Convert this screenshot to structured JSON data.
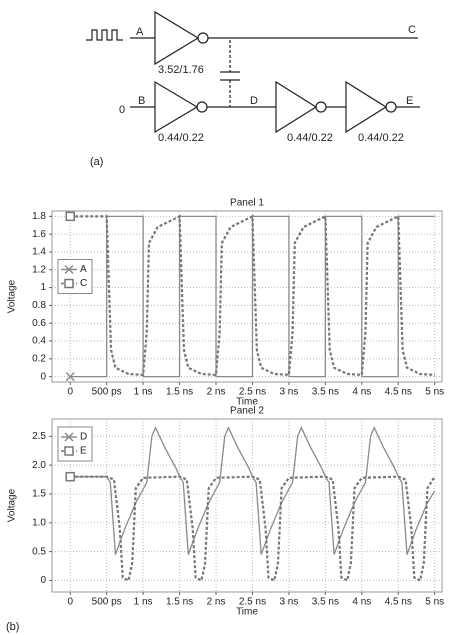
{
  "diagram": {
    "input_a": "A",
    "output_c": "C",
    "size_1": "3.52/1.76",
    "input_b_value": "0",
    "input_b": "B",
    "node_d": "D",
    "output_e": "E",
    "size_2": "0.44/0.22",
    "size_3": "0.44/0.22",
    "size_4": "0.44/0.22",
    "caption": "(a)"
  },
  "caption_b": "(b)",
  "chart_data": [
    {
      "type": "line",
      "title": "Panel 1",
      "xlabel": "Time",
      "ylabel": "Voltage",
      "xlim": [
        -0.25,
        5.1
      ],
      "ylim": [
        -0.06,
        1.86
      ],
      "xticks": [
        0,
        {
          "value": 0.5,
          "label": "500 ps"
        },
        {
          "value": 1,
          "label": "1 ns"
        },
        {
          "value": 1.5,
          "label": "1.5 ns"
        },
        {
          "value": 2,
          "label": "2 ns"
        },
        {
          "value": 2.5,
          "label": "2.5 ns"
        },
        {
          "value": 3,
          "label": "3 ns"
        },
        {
          "value": 3.5,
          "label": "3.5 ns"
        },
        {
          "value": 4,
          "label": "4 ns"
        },
        {
          "value": 4.5,
          "label": "4.5 ns"
        },
        {
          "value": 5,
          "label": "5 ns"
        }
      ],
      "yticks": [
        0,
        0.2,
        0.4,
        0.6,
        0.8,
        1,
        1.2,
        1.4,
        1.6,
        1.8
      ],
      "grid": true,
      "legend": "center left",
      "series": [
        {
          "name": "A",
          "color": "#8a8a8a",
          "marker": "x",
          "dashed": false,
          "x": [
            0,
            0.5,
            0.5,
            1,
            1,
            1.5,
            1.5,
            2,
            2,
            2.5,
            2.5,
            3,
            3,
            3.5,
            3.5,
            4,
            4,
            4.5,
            4.5,
            5
          ],
          "values": [
            0,
            0,
            1.8,
            1.8,
            0,
            0,
            1.8,
            1.8,
            0,
            0,
            1.8,
            1.8,
            0,
            0,
            1.8,
            1.8,
            0,
            0,
            1.8,
            1.8
          ]
        },
        {
          "name": "C",
          "color": "#777777",
          "marker": "square",
          "dashed": true,
          "x": [
            0,
            0.5,
            0.56,
            0.62,
            0.8,
            1.0,
            1.05,
            1.08,
            1.2,
            1.4,
            1.5,
            1.56,
            1.62,
            1.8,
            2.0,
            2.05,
            2.08,
            2.2,
            2.4,
            2.5,
            2.56,
            2.62,
            2.8,
            3.0,
            3.05,
            3.08,
            3.2,
            3.4,
            3.5,
            3.56,
            3.62,
            3.8,
            4.0,
            4.05,
            4.08,
            4.2,
            4.4,
            4.5,
            4.56,
            4.62,
            4.8,
            5.0
          ],
          "values": [
            1.8,
            1.8,
            0.3,
            0.1,
            0.03,
            0.02,
            0.5,
            1.5,
            1.68,
            1.76,
            1.8,
            0.3,
            0.1,
            0.03,
            0.02,
            0.5,
            1.5,
            1.68,
            1.76,
            1.8,
            0.3,
            0.1,
            0.03,
            0.02,
            0.5,
            1.5,
            1.68,
            1.76,
            1.8,
            0.3,
            0.1,
            0.03,
            0.02,
            0.5,
            1.5,
            1.68,
            1.76,
            1.8,
            0.3,
            0.1,
            0.03,
            0.02
          ]
        }
      ]
    },
    {
      "type": "line",
      "title": "Panel 2",
      "xlabel": "Time",
      "ylabel": "Voltage",
      "xlim": [
        -0.25,
        5.1
      ],
      "ylim": [
        -0.2,
        2.8
      ],
      "xticks": [
        0,
        {
          "value": 0.5,
          "label": "500 ps"
        },
        {
          "value": 1,
          "label": "1 ns"
        },
        {
          "value": 1.5,
          "label": "1.5 ns"
        },
        {
          "value": 2,
          "label": "2 ns"
        },
        {
          "value": 2.5,
          "label": "2.5 ns"
        },
        {
          "value": 3,
          "label": "3 ns"
        },
        {
          "value": 3.5,
          "label": "3.5 ns"
        },
        {
          "value": 4,
          "label": "4 ns"
        },
        {
          "value": 4.5,
          "label": "4.5 ns"
        },
        {
          "value": 5,
          "label": "5 ns"
        }
      ],
      "yticks": [
        0,
        0.5,
        {
          "value": 1,
          "label": "1.0"
        },
        1.5,
        {
          "value": 2,
          "label": "2.0"
        },
        2.5
      ],
      "grid": true,
      "legend": "upper left",
      "series": [
        {
          "name": "D",
          "color": "#8a8a8a",
          "marker": "x",
          "dashed": false,
          "x": [
            0,
            0.5,
            0.55,
            0.62,
            0.75,
            0.9,
            1.05,
            1.12,
            1.17,
            1.3,
            1.45,
            1.5,
            1.55,
            1.62,
            1.75,
            1.9,
            2.05,
            2.12,
            2.17,
            2.3,
            2.45,
            2.5,
            2.55,
            2.62,
            2.75,
            2.9,
            3.05,
            3.12,
            3.17,
            3.3,
            3.45,
            3.5,
            3.55,
            3.62,
            3.75,
            3.9,
            4.05,
            4.12,
            4.17,
            4.3,
            4.45,
            4.5,
            4.55,
            4.62,
            4.75,
            4.9,
            5.0
          ],
          "values": [
            1.8,
            1.8,
            1.7,
            0.45,
            0.9,
            1.35,
            1.7,
            2.5,
            2.65,
            2.3,
            1.95,
            1.8,
            1.7,
            0.45,
            0.9,
            1.35,
            1.7,
            2.5,
            2.65,
            2.3,
            1.95,
            1.8,
            1.7,
            0.45,
            0.9,
            1.35,
            1.7,
            2.5,
            2.65,
            2.3,
            1.95,
            1.8,
            1.7,
            0.45,
            0.9,
            1.35,
            1.7,
            2.5,
            2.65,
            2.3,
            1.95,
            1.8,
            1.7,
            0.45,
            0.9,
            1.35,
            1.55
          ]
        },
        {
          "name": "E",
          "color": "#777777",
          "marker": "square",
          "dashed": true,
          "x": [
            0,
            0.5,
            0.6,
            0.68,
            0.72,
            0.8,
            0.85,
            0.9,
            1.0,
            1.5,
            1.6,
            1.68,
            1.72,
            1.8,
            1.85,
            1.9,
            2.0,
            2.5,
            2.6,
            2.68,
            2.72,
            2.8,
            2.85,
            2.9,
            3.0,
            3.5,
            3.6,
            3.68,
            3.72,
            3.8,
            3.85,
            3.9,
            4.0,
            4.5,
            4.6,
            4.68,
            4.72,
            4.8,
            4.85,
            4.9,
            5.0
          ],
          "values": [
            1.8,
            1.8,
            1.75,
            0.9,
            0.05,
            0,
            0.3,
            1.6,
            1.78,
            1.8,
            1.75,
            0.9,
            0.05,
            0,
            0.3,
            1.6,
            1.78,
            1.8,
            1.75,
            0.9,
            0.05,
            0,
            0.3,
            1.6,
            1.78,
            1.8,
            1.75,
            0.9,
            0.05,
            0,
            0.3,
            1.6,
            1.78,
            1.8,
            1.75,
            0.9,
            0.05,
            0,
            0.3,
            1.6,
            1.8
          ]
        }
      ]
    }
  ]
}
